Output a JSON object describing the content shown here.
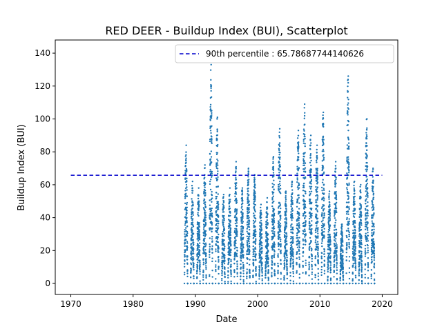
{
  "chart_data": {
    "type": "scatter",
    "title": "RED DEER - Buildup Index (BUI), Scatterplot",
    "xlabel": "Date",
    "ylabel": "Buildup Index (BUI)",
    "xlim": [
      1967.5,
      2022.5
    ],
    "ylim": [
      -6.7,
      148
    ],
    "xticks": [
      1970,
      1980,
      1990,
      2000,
      2010,
      2020
    ],
    "yticks": [
      0,
      20,
      40,
      60,
      80,
      100,
      120,
      140
    ],
    "grid": false,
    "legend_position": "top-right",
    "reference_line": {
      "label": "90th percentile : 65.78687744140626",
      "value": 65.78687744140626,
      "x_range": [
        1970,
        2020
      ],
      "color": "#0000cc",
      "style": "dashed"
    },
    "series": [
      {
        "color": "#1f77b4",
        "marker": "point",
        "season_peaks": [
          {
            "year": 1988,
            "peak": 84
          },
          {
            "year": 1989,
            "peak": 62
          },
          {
            "year": 1990,
            "peak": 58
          },
          {
            "year": 1991,
            "peak": 72
          },
          {
            "year": 1992,
            "peak": 133
          },
          {
            "year": 1993,
            "peak": 101
          },
          {
            "year": 1994,
            "peak": 54
          },
          {
            "year": 1995,
            "peak": 58
          },
          {
            "year": 1996,
            "peak": 74
          },
          {
            "year": 1997,
            "peak": 58
          },
          {
            "year": 1998,
            "peak": 70
          },
          {
            "year": 1999,
            "peak": 66
          },
          {
            "year": 2000,
            "peak": 48
          },
          {
            "year": 2001,
            "peak": 52
          },
          {
            "year": 2002,
            "peak": 77
          },
          {
            "year": 2003,
            "peak": 94
          },
          {
            "year": 2004,
            "peak": 56
          },
          {
            "year": 2005,
            "peak": 62
          },
          {
            "year": 2006,
            "peak": 93
          },
          {
            "year": 2007,
            "peak": 109
          },
          {
            "year": 2008,
            "peak": 90
          },
          {
            "year": 2009,
            "peak": 84
          },
          {
            "year": 2010,
            "peak": 104
          },
          {
            "year": 2011,
            "peak": 56
          },
          {
            "year": 2012,
            "peak": 74
          },
          {
            "year": 2013,
            "peak": 36
          },
          {
            "year": 2014,
            "peak": 126
          },
          {
            "year": 2015,
            "peak": 62
          },
          {
            "year": 2016,
            "peak": 60
          },
          {
            "year": 2017,
            "peak": 100
          },
          {
            "year": 2018,
            "peak": 70
          }
        ]
      }
    ]
  }
}
